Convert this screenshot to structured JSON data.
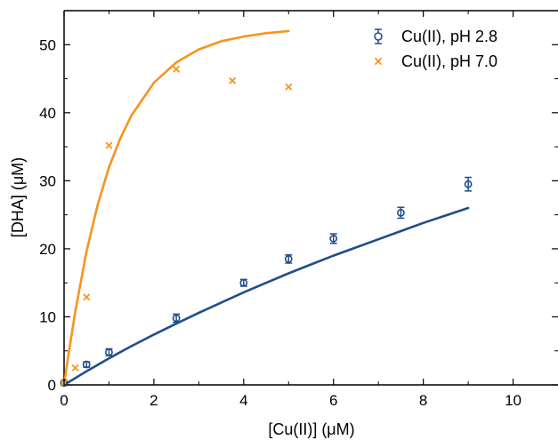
{
  "chart_data": {
    "type": "scatter",
    "title": "",
    "xlabel": "[Cu(II)] (μM)",
    "ylabel": "[DHA] (μM)",
    "xlim": [
      0,
      11
    ],
    "ylim": [
      0,
      55
    ],
    "xticks": [
      0,
      2,
      4,
      6,
      8,
      10
    ],
    "yticks": [
      0,
      10,
      20,
      30,
      40,
      50
    ],
    "grid": false,
    "legend_position": "top-right",
    "series": [
      {
        "name": "Cu(II), pH 2.8",
        "color": "#1f4e8c",
        "marker": "circle-open",
        "has_error_bars": true,
        "x": [
          0,
          0.5,
          1,
          2.5,
          4,
          5,
          6,
          7.5,
          9
        ],
        "y": [
          0.3,
          3.0,
          4.8,
          9.8,
          15.0,
          18.5,
          21.5,
          25.3,
          29.5
        ],
        "yerr": [
          0.4,
          0.4,
          0.5,
          0.6,
          0.5,
          0.6,
          0.7,
          0.8,
          1.0
        ],
        "fit": {
          "x": [
            0,
            0.5,
            1,
            1.5,
            2,
            2.5,
            3,
            3.5,
            4,
            4.5,
            5,
            5.5,
            6,
            6.5,
            7,
            7.5,
            8,
            8.5,
            9
          ],
          "y": [
            0,
            2.0,
            3.9,
            5.7,
            7.4,
            9.0,
            10.6,
            12.1,
            13.6,
            15.0,
            16.4,
            17.7,
            19.0,
            20.2,
            21.4,
            22.6,
            23.8,
            24.9,
            26.0
          ]
        }
      },
      {
        "name": "Cu(II), pH 7.0",
        "color": "#f7941d",
        "marker": "x",
        "has_error_bars": false,
        "x": [
          0,
          0.25,
          0.5,
          1,
          2.5,
          3.75,
          5
        ],
        "y": [
          0.3,
          2.5,
          12.9,
          35.2,
          46.4,
          44.7,
          43.8
        ],
        "fit": {
          "x": [
            0,
            0.1,
            0.25,
            0.5,
            0.75,
            1,
            1.25,
            1.5,
            2,
            2.5,
            3,
            3.5,
            4,
            4.5,
            5
          ],
          "y": [
            0,
            4.5,
            10.8,
            19.6,
            26.5,
            32.0,
            36.2,
            39.6,
            44.4,
            47.4,
            49.3,
            50.5,
            51.2,
            51.7,
            52.0
          ]
        }
      }
    ]
  }
}
